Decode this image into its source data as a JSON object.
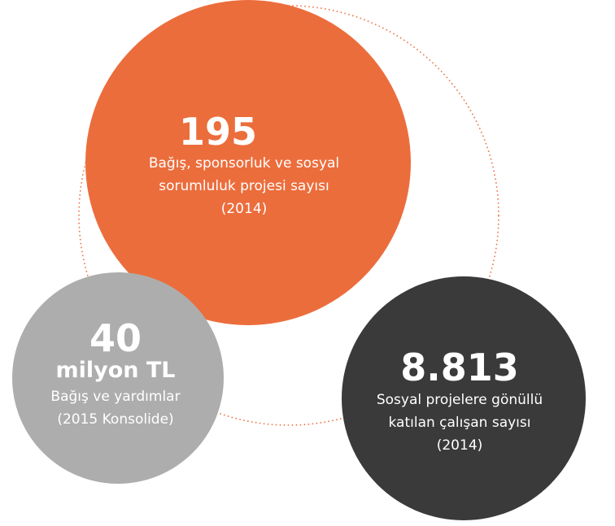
{
  "circles": [
    {
      "number": "195",
      "lines": [
        "Bağış, sponsorluk ve sosyal",
        "sorumluluk projesi sayısı",
        "(2014)"
      ]
    },
    {
      "number": "40",
      "unit": "milyon TL",
      "lines": [
        "Bağış ve yardımlar",
        "(2015 Konsolide)"
      ]
    },
    {
      "number": "8.813",
      "lines": [
        "Sosyal projelere gönüllü",
        "katılan çalışan sayısı",
        "(2014)"
      ]
    }
  ]
}
